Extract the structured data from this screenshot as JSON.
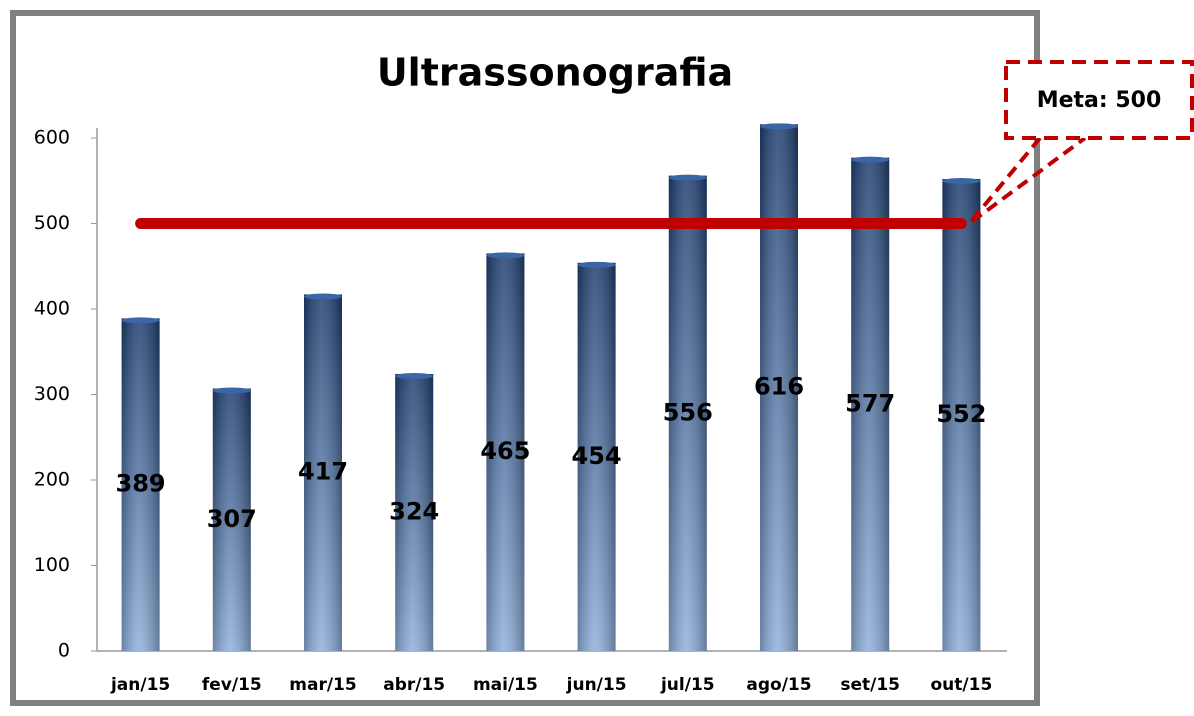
{
  "chart_data": {
    "type": "bar",
    "title": "Ultrassonografia",
    "categories": [
      "jan/15",
      "fev/15",
      "mar/15",
      "abr/15",
      "mai/15",
      "jun/15",
      "jul/15",
      "ago/15",
      "set/15",
      "out/15"
    ],
    "values": [
      389,
      307,
      417,
      324,
      465,
      454,
      556,
      616,
      577,
      552
    ],
    "color": "#2e5a9a",
    "ylim": [
      0,
      600
    ],
    "yticks": [
      0,
      100,
      200,
      300,
      400,
      500,
      600
    ],
    "target": 500,
    "target_color": "#c00000",
    "target_label": "Meta: 500"
  }
}
